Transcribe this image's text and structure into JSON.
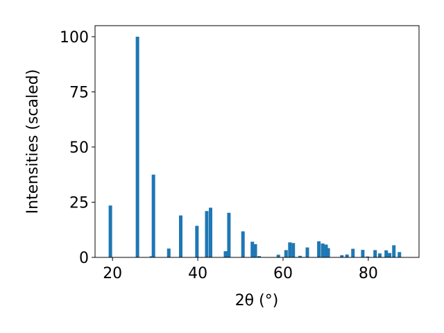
{
  "chart_data": {
    "type": "bar",
    "xlabel": "2θ (°)",
    "ylabel": "Intensities (scaled)",
    "x": [
      19.5,
      25.85,
      29.1,
      29.6,
      33.2,
      36.0,
      39.8,
      42.1,
      43.0,
      46.5,
      47.3,
      50.6,
      52.8,
      53.5,
      54.4,
      58.9,
      60.7,
      61.6,
      62.4,
      64.0,
      65.7,
      68.4,
      69.3,
      70.1,
      70.6,
      73.8,
      75.0,
      76.4,
      78.7,
      79.8,
      81.6,
      82.7,
      84.2,
      85.0,
      86.0,
      87.3
    ],
    "values": [
      23.5,
      100,
      0.5,
      37.5,
      4,
      19,
      14.3,
      21,
      22.5,
      2.8,
      20.2,
      11.8,
      7.1,
      6,
      0.6,
      1.2,
      3.3,
      6.8,
      6.5,
      0.7,
      4.5,
      7.3,
      6.3,
      5.8,
      4.2,
      1,
      1.3,
      3.9,
      3.4,
      0.4,
      3.3,
      1.8,
      3.2,
      2,
      5.5,
      2.4
    ],
    "color": "#1f77b4",
    "xlim": [
      15.9,
      91.9
    ],
    "xticks": [
      20,
      40,
      60,
      80
    ],
    "ylim": [
      0,
      105
    ],
    "yticks": [
      0,
      25,
      50,
      75,
      100
    ],
    "grid": false
  }
}
